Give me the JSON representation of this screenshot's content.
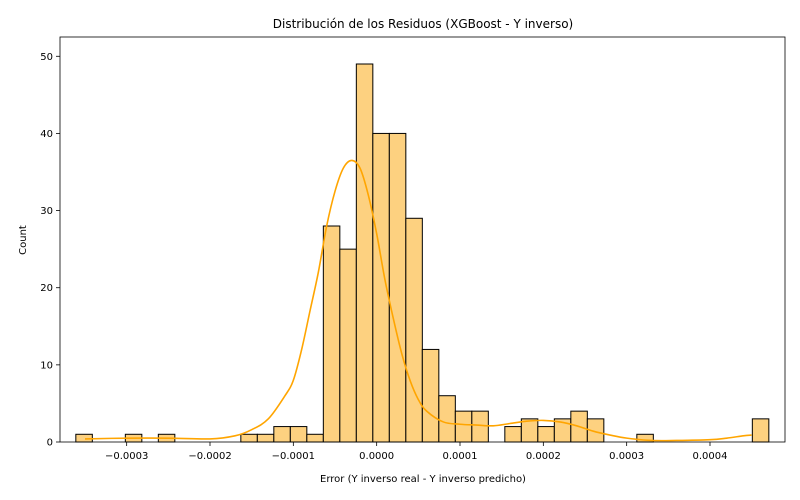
{
  "chart_data": {
    "type": "bar",
    "title": "Distribución de los Residuos (XGBoost - Y inverso)",
    "xlabel": "Error (Y inverso real - Y inverso predicho)",
    "ylabel": "Count",
    "xlim": [
      -0.00038,
      0.00049
    ],
    "ylim": [
      0,
      52.5
    ],
    "x_ticks": [
      -0.0003,
      -0.0002,
      -0.0001,
      0.0,
      0.0001,
      0.0002,
      0.0003,
      0.0004
    ],
    "x_tick_labels": [
      "−0.0003",
      "−0.0002",
      "−0.0001",
      "0.0000",
      "0.0001",
      "0.0002",
      "0.0003",
      "0.0004"
    ],
    "y_ticks": [
      0,
      10,
      20,
      30,
      40,
      50
    ],
    "y_tick_labels": [
      "0",
      "10",
      "20",
      "30",
      "40",
      "50"
    ],
    "grid": false,
    "bin_start": -0.000361,
    "bin_width": 1.98e-05,
    "bin_counts": [
      1,
      0,
      0,
      1,
      0,
      1,
      0,
      0,
      0,
      0,
      1,
      1,
      2,
      2,
      1,
      28,
      25,
      49,
      40,
      40,
      29,
      12,
      6,
      4,
      4,
      0,
      2,
      3,
      2,
      3,
      4,
      3,
      0,
      0,
      1,
      0,
      0,
      0,
      0,
      0,
      0,
      3
    ],
    "kde": {
      "x": [
        -0.00035,
        -0.0003,
        -0.00025,
        -0.0002,
        -0.00017,
        -0.00015,
        -0.00013,
        -0.00011,
        -0.0001,
        -9e-05,
        -8e-05,
        -7e-05,
        -6e-05,
        -5e-05,
        -4e-05,
        -3e-05,
        -2e-05,
        -1e-05,
        0.0,
        1e-05,
        2e-05,
        3e-05,
        4e-05,
        5e-05,
        6e-05,
        8e-05,
        0.0001,
        0.00012,
        0.00014,
        0.00016,
        0.00018,
        0.0002,
        0.00022,
        0.00024,
        0.00026,
        0.00028,
        0.0003,
        0.00033,
        0.00036,
        0.0004,
        0.00042,
        0.00044,
        0.00045
      ],
      "y": [
        0.4,
        0.5,
        0.5,
        0.4,
        0.8,
        1.6,
        3.0,
        6.0,
        8.0,
        12.0,
        17.0,
        22.0,
        28.0,
        32.5,
        35.5,
        36.5,
        35.5,
        32.0,
        27.0,
        21.0,
        16.0,
        11.5,
        8.0,
        5.5,
        4.0,
        2.6,
        2.3,
        2.2,
        2.1,
        2.4,
        2.7,
        2.8,
        2.6,
        2.1,
        1.4,
        0.9,
        0.5,
        0.2,
        0.2,
        0.3,
        0.5,
        0.8,
        0.9
      ]
    },
    "colors": {
      "bar_fill": "#fdd180",
      "bar_edge": "#000000",
      "kde_line": "#ffa500"
    }
  }
}
